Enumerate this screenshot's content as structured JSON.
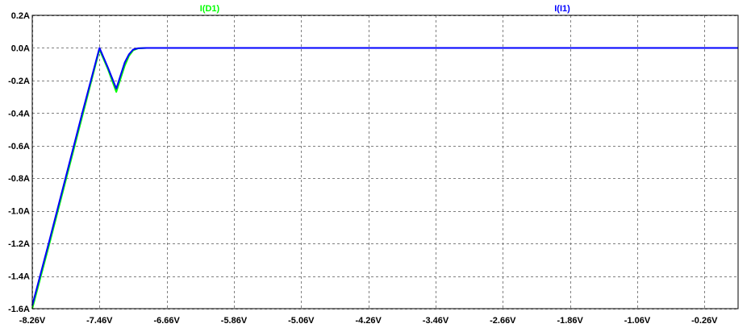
{
  "chart_data": {
    "type": "line",
    "title": "",
    "xlabel": "",
    "ylabel": "",
    "xlim": [
      -8.26,
      0.14
    ],
    "ylim": [
      -1.6,
      0.2
    ],
    "x_ticks": [
      -8.26,
      -7.46,
      -6.66,
      -5.86,
      -5.06,
      -4.26,
      -3.46,
      -2.66,
      -1.86,
      -1.06,
      -0.26
    ],
    "x_tick_labels": [
      "-8.26V",
      "-7.46V",
      "-6.66V",
      "-5.86V",
      "-5.06V",
      "-4.26V",
      "-3.46V",
      "-2.66V",
      "-1.86V",
      "-1.06V",
      "-0.26V"
    ],
    "y_ticks": [
      0.2,
      0.0,
      -0.2,
      -0.4,
      -0.6,
      -0.8,
      -1.0,
      -1.2,
      -1.4,
      -1.6
    ],
    "y_tick_labels": [
      "0.2A",
      "0.0A",
      "-0.2A",
      "-0.4A",
      "-0.6A",
      "-0.8A",
      "-1.0A",
      "-1.2A",
      "-1.4A",
      "-1.6A"
    ],
    "grid": true,
    "legend": "top",
    "background": "#ffffff",
    "series": [
      {
        "name": "I(D1)",
        "color": "#00ff00",
        "x": [
          -8.26,
          -8.06,
          -7.86,
          -7.66,
          -7.46,
          -7.36,
          -7.26,
          -7.21,
          -7.16,
          -7.11,
          -7.06,
          -7.0,
          -6.9,
          -6.66,
          -5.86,
          -5.06,
          -4.26,
          -3.46,
          -2.66,
          -1.86,
          -1.06,
          -0.26,
          0.14
        ],
        "y": [
          -1.6,
          -1.21,
          -0.81,
          -0.41,
          -0.01,
          -0.13,
          -0.27,
          -0.19,
          -0.11,
          -0.05,
          -0.015,
          -0.003,
          0.0,
          0.0,
          0.0,
          0.0,
          0.0,
          0.0,
          0.0,
          0.0,
          0.0,
          0.0,
          0.0
        ]
      },
      {
        "name": "I(I1)",
        "color": "#0000ff",
        "x": [
          -8.26,
          -8.06,
          -7.86,
          -7.66,
          -7.46,
          -7.36,
          -7.26,
          -7.21,
          -7.16,
          -7.11,
          -7.06,
          -7.0,
          -6.9,
          -6.66,
          -5.86,
          -5.06,
          -4.26,
          -3.46,
          -2.66,
          -1.86,
          -1.06,
          -0.26,
          0.14
        ],
        "y": [
          -1.58,
          -1.19,
          -0.79,
          -0.39,
          0.0,
          -0.12,
          -0.25,
          -0.17,
          -0.09,
          -0.04,
          -0.01,
          -0.002,
          0.0,
          0.0,
          0.0,
          0.0,
          0.0,
          0.0,
          0.0,
          0.0,
          0.0,
          0.0,
          0.0
        ]
      }
    ]
  }
}
